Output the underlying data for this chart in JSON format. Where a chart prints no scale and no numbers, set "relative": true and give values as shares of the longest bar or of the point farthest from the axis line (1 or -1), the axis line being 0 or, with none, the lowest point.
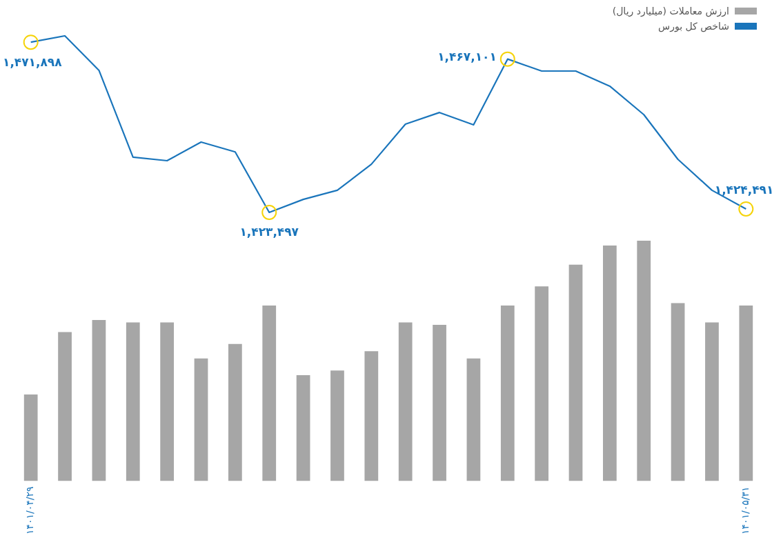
{
  "chart_data": [
    {
      "type": "line",
      "legend": "top right",
      "grid": false,
      "marker": "none",
      "tick_labels": false,
      "categories": [
        "۱۴۰۱/۰۴/۲۹",
        null,
        null,
        null,
        null,
        null,
        null,
        null,
        null,
        null,
        null,
        null,
        null,
        null,
        null,
        null,
        null,
        null,
        null,
        null,
        null,
        "۱۴۰۱/۰۵/۳۱"
      ],
      "series": [
        {
          "name": "شاخص کل بورس",
          "color": "#1a75bb",
          "line_style": "solid",
          "values": [
            1471898,
            1473700,
            1463900,
            1439200,
            1438200,
            1443500,
            1440700,
            1423497,
            1427200,
            1429800,
            1437200,
            1448600,
            1451900,
            1448400,
            1467101,
            1463700,
            1463700,
            1459400,
            1451300,
            1438600,
            1429800,
            1424491
          ],
          "value_labels": [
            "۱,۴۷۱,۸۹۸",
            null,
            null,
            null,
            null,
            null,
            null,
            "۱,۴۲۳,۴۹۷",
            null,
            null,
            null,
            null,
            null,
            null,
            "۱,۴۶۷,۱۰۱",
            null,
            null,
            null,
            null,
            null,
            null,
            "۱,۴۲۴,۴۹۱"
          ]
        }
      ]
    },
    {
      "type": "bar",
      "relative": true,
      "legend": "top right",
      "grid": false,
      "tick_labels": "x",
      "categories": [
        "۱۴۰۱/۰۴/۲۹",
        null,
        null,
        null,
        null,
        null,
        null,
        null,
        null,
        null,
        null,
        null,
        null,
        null,
        null,
        null,
        null,
        null,
        null,
        null,
        null,
        "۱۴۰۱/۰۵/۳۱"
      ],
      "series": [
        {
          "name": "ارزش معاملات (میلیارد ریال)",
          "color": "#a6a6a6",
          "values": [
            0.36,
            0.62,
            0.67,
            0.66,
            0.66,
            0.51,
            0.57,
            0.73,
            0.44,
            0.46,
            0.54,
            0.66,
            0.65,
            0.51,
            0.73,
            0.81,
            0.9,
            0.98,
            1,
            0.74,
            0.66,
            0.73
          ]
        }
      ]
    }
  ]
}
